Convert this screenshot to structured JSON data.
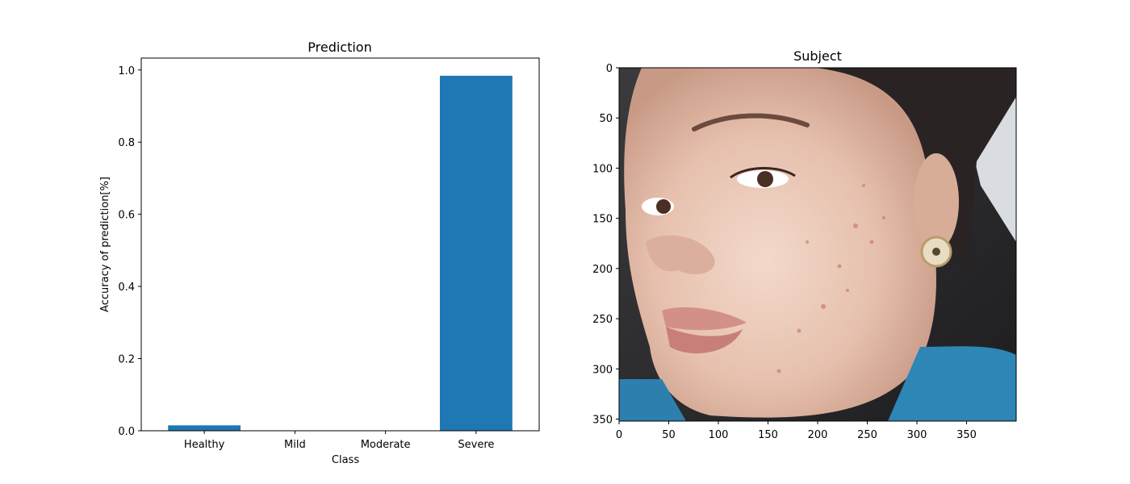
{
  "chart_data": [
    {
      "type": "bar",
      "title": "Prediction",
      "xlabel": "Class",
      "ylabel": "Accuracy of prediction[%]",
      "categories": [
        "Healthy",
        "Mild",
        "Moderate",
        "Severe"
      ],
      "values": [
        0.015,
        0.0,
        0.0,
        0.984
      ],
      "ylim": [
        0,
        1.033
      ],
      "yticks": [
        0.0,
        0.2,
        0.4,
        0.6,
        0.8,
        1.0
      ],
      "ytick_labels": [
        "0.0",
        "0.2",
        "0.4",
        "0.6",
        "0.8",
        "1.0"
      ],
      "bar_color": "#1f77b4",
      "grid": false
    },
    {
      "type": "image",
      "title": "Subject",
      "image_description": "Close-up selfie of a young woman's face with visible acne marks on the cheek, dark hair, earring, car interior background",
      "xlim": [
        0,
        400
      ],
      "ylim": [
        352,
        0
      ],
      "xticks": [
        0,
        50,
        100,
        150,
        200,
        250,
        300,
        350
      ],
      "xtick_labels": [
        "0",
        "50",
        "100",
        "150",
        "200",
        "250",
        "300",
        "350"
      ],
      "yticks": [
        0,
        50,
        100,
        150,
        200,
        250,
        300,
        350
      ],
      "ytick_labels": [
        "0",
        "50",
        "100",
        "150",
        "200",
        "250",
        "300",
        "350"
      ]
    }
  ]
}
